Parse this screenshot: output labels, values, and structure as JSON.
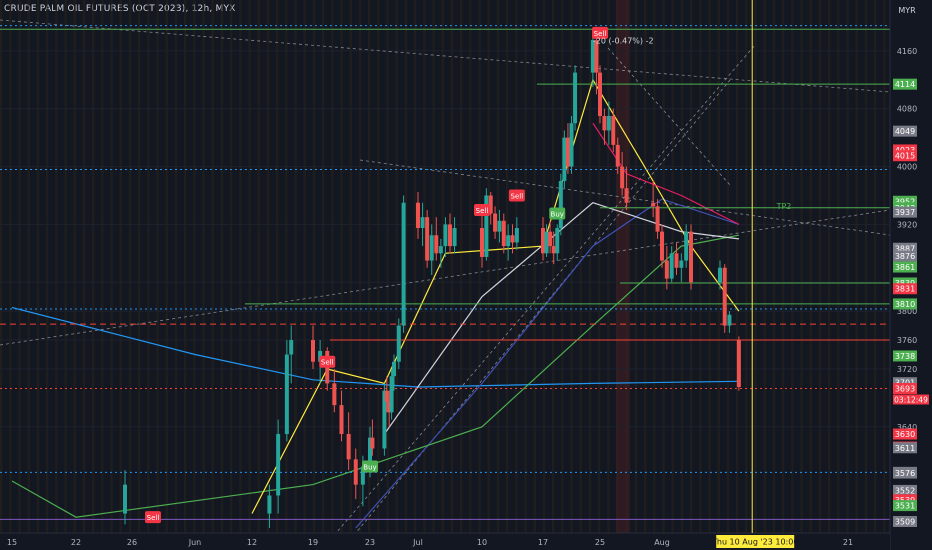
{
  "header": {
    "title": "CRUDE PALM OIL FUTURES (OCT 2023), 12h, MYX"
  },
  "axis": {
    "currency": "MYR"
  },
  "chart_data": {
    "type": "candlestick",
    "ylim": [
      3500,
      4200
    ],
    "price_ticks": [
      4160,
      4080,
      4000,
      3920,
      3840,
      3800,
      3760,
      3720,
      3640
    ],
    "x_ticks": [
      {
        "label": "15",
        "x": "2023-05-15"
      },
      {
        "label": "22",
        "x": "2023-05-22"
      },
      {
        "label": "26",
        "x": "2023-05-26"
      },
      {
        "label": "Jun",
        "x": "2023-06-01"
      },
      {
        "label": "12",
        "x": "2023-06-12"
      },
      {
        "label": "19",
        "x": "2023-06-19"
      },
      {
        "label": "23",
        "x": "2023-06-23"
      },
      {
        "label": "Jul",
        "x": "2023-07-03"
      },
      {
        "label": "10",
        "x": "2023-07-10"
      },
      {
        "label": "17",
        "x": "2023-07-17"
      },
      {
        "label": "25",
        "x": "2023-07-25"
      },
      {
        "label": "Aug",
        "x": "2023-08-01"
      },
      {
        "label": "7",
        "x": "2023-08-07"
      },
      {
        "label": "14",
        "x": "2023-08-14"
      },
      {
        "label": "21",
        "x": "2023-08-21"
      }
    ],
    "candles": [
      {
        "x": "2023-05-25T12",
        "o": 3520,
        "h": 3580,
        "l": 3505,
        "c": 3560
      },
      {
        "x": "2023-06-14",
        "o": 3520,
        "h": 3560,
        "l": 3500,
        "c": 3545
      },
      {
        "x": "2023-06-15",
        "o": 3545,
        "h": 3650,
        "l": 3520,
        "c": 3630
      },
      {
        "x": "2023-06-16",
        "o": 3630,
        "h": 3760,
        "l": 3620,
        "c": 3740
      },
      {
        "x": "2023-06-16T12",
        "o": 3740,
        "h": 3780,
        "l": 3700,
        "c": 3760
      },
      {
        "x": "2023-06-19",
        "o": 3760,
        "h": 3780,
        "l": 3720,
        "c": 3730
      },
      {
        "x": "2023-06-19T12",
        "o": 3730,
        "h": 3760,
        "l": 3700,
        "c": 3745
      },
      {
        "x": "2023-06-20",
        "o": 3745,
        "h": 3750,
        "l": 3690,
        "c": 3700
      },
      {
        "x": "2023-06-20T12",
        "o": 3700,
        "h": 3720,
        "l": 3660,
        "c": 3670
      },
      {
        "x": "2023-06-21",
        "o": 3670,
        "h": 3690,
        "l": 3620,
        "c": 3630
      },
      {
        "x": "2023-06-21T12",
        "o": 3630,
        "h": 3660,
        "l": 3580,
        "c": 3595
      },
      {
        "x": "2023-06-22",
        "o": 3595,
        "h": 3610,
        "l": 3540,
        "c": 3560
      },
      {
        "x": "2023-06-22T12",
        "o": 3560,
        "h": 3600,
        "l": 3530,
        "c": 3585
      },
      {
        "x": "2023-06-23",
        "o": 3585,
        "h": 3640,
        "l": 3570,
        "c": 3625
      },
      {
        "x": "2023-06-23T12",
        "o": 3625,
        "h": 3650,
        "l": 3600,
        "c": 3610
      },
      {
        "x": "2023-06-26",
        "o": 3610,
        "h": 3700,
        "l": 3600,
        "c": 3690
      },
      {
        "x": "2023-06-26T12",
        "o": 3690,
        "h": 3710,
        "l": 3660,
        "c": 3675
      },
      {
        "x": "2023-06-27",
        "o": 3675,
        "h": 3690,
        "l": 3640,
        "c": 3660
      },
      {
        "x": "2023-06-27T12",
        "o": 3660,
        "h": 3720,
        "l": 3650,
        "c": 3710
      },
      {
        "x": "2023-06-28",
        "o": 3710,
        "h": 3740,
        "l": 3690,
        "c": 3730
      },
      {
        "x": "2023-06-29",
        "o": 3730,
        "h": 3790,
        "l": 3720,
        "c": 3780
      },
      {
        "x": "2023-06-30",
        "o": 3780,
        "h": 3960,
        "l": 3770,
        "c": 3950
      },
      {
        "x": "2023-07-03",
        "o": 3950,
        "h": 3965,
        "l": 3900,
        "c": 3915
      },
      {
        "x": "2023-07-03T12",
        "o": 3915,
        "h": 3950,
        "l": 3890,
        "c": 3930
      },
      {
        "x": "2023-07-04",
        "o": 3930,
        "h": 3940,
        "l": 3860,
        "c": 3870
      },
      {
        "x": "2023-07-04T12",
        "o": 3870,
        "h": 3920,
        "l": 3850,
        "c": 3905
      },
      {
        "x": "2023-07-05",
        "o": 3905,
        "h": 3930,
        "l": 3870,
        "c": 3880
      },
      {
        "x": "2023-07-05T12",
        "o": 3880,
        "h": 3900,
        "l": 3860,
        "c": 3890
      },
      {
        "x": "2023-07-06",
        "o": 3890,
        "h": 3930,
        "l": 3875,
        "c": 3920
      },
      {
        "x": "2023-07-06T12",
        "o": 3920,
        "h": 3935,
        "l": 3880,
        "c": 3890
      },
      {
        "x": "2023-07-07",
        "o": 3890,
        "h": 3930,
        "l": 3880,
        "c": 3915
      },
      {
        "x": "2023-07-10",
        "o": 3915,
        "h": 3935,
        "l": 3860,
        "c": 3875
      },
      {
        "x": "2023-07-10T12",
        "o": 3875,
        "h": 3970,
        "l": 3870,
        "c": 3960
      },
      {
        "x": "2023-07-11",
        "o": 3960,
        "h": 3965,
        "l": 3920,
        "c": 3935
      },
      {
        "x": "2023-07-11T12",
        "o": 3935,
        "h": 3945,
        "l": 3900,
        "c": 3910
      },
      {
        "x": "2023-07-12",
        "o": 3910,
        "h": 3940,
        "l": 3895,
        "c": 3925
      },
      {
        "x": "2023-07-12T12",
        "o": 3925,
        "h": 3935,
        "l": 3880,
        "c": 3890
      },
      {
        "x": "2023-07-13",
        "o": 3890,
        "h": 3920,
        "l": 3870,
        "c": 3905
      },
      {
        "x": "2023-07-13T12",
        "o": 3905,
        "h": 3920,
        "l": 3880,
        "c": 3895
      },
      {
        "x": "2023-07-14",
        "o": 3895,
        "h": 3930,
        "l": 3885,
        "c": 3915
      },
      {
        "x": "2023-07-17",
        "o": 3915,
        "h": 3930,
        "l": 3870,
        "c": 3880
      },
      {
        "x": "2023-07-17T12",
        "o": 3880,
        "h": 3920,
        "l": 3875,
        "c": 3910
      },
      {
        "x": "2023-07-18",
        "o": 3910,
        "h": 3925,
        "l": 3880,
        "c": 3890
      },
      {
        "x": "2023-07-18T12",
        "o": 3890,
        "h": 3910,
        "l": 3865,
        "c": 3880
      },
      {
        "x": "2023-07-19",
        "o": 3880,
        "h": 3920,
        "l": 3870,
        "c": 3915
      },
      {
        "x": "2023-07-19T12",
        "o": 3915,
        "h": 3990,
        "l": 3905,
        "c": 3980
      },
      {
        "x": "2023-07-20",
        "o": 3980,
        "h": 4050,
        "l": 3970,
        "c": 4040
      },
      {
        "x": "2023-07-20T12",
        "o": 4040,
        "h": 4060,
        "l": 3990,
        "c": 4000
      },
      {
        "x": "2023-07-21",
        "o": 4000,
        "h": 4070,
        "l": 3990,
        "c": 4060
      },
      {
        "x": "2023-07-21T12",
        "o": 4060,
        "h": 4140,
        "l": 4050,
        "c": 4130
      },
      {
        "x": "2023-07-24",
        "o": 4130,
        "h": 4180,
        "l": 4110,
        "c": 4175
      },
      {
        "x": "2023-07-24T12",
        "o": 4175,
        "h": 4180,
        "l": 4100,
        "c": 4130
      },
      {
        "x": "2023-07-25",
        "o": 4130,
        "h": 4140,
        "l": 4060,
        "c": 4070
      },
      {
        "x": "2023-07-25T12",
        "o": 4070,
        "h": 4080,
        "l": 4030,
        "c": 4050
      },
      {
        "x": "2023-07-26",
        "o": 4050,
        "h": 4090,
        "l": 4030,
        "c": 4070
      },
      {
        "x": "2023-07-26T12",
        "o": 4070,
        "h": 4080,
        "l": 4020,
        "c": 4030
      },
      {
        "x": "2023-07-27",
        "o": 4030,
        "h": 4040,
        "l": 3990,
        "c": 4000
      },
      {
        "x": "2023-07-27T12",
        "o": 4000,
        "h": 4020,
        "l": 3960,
        "c": 3970
      },
      {
        "x": "2023-07-28",
        "o": 3970,
        "h": 4000,
        "l": 3940,
        "c": 3950
      },
      {
        "x": "2023-07-31",
        "o": 3950,
        "h": 3980,
        "l": 3930,
        "c": 3945
      },
      {
        "x": "2023-07-31T12",
        "o": 3945,
        "h": 3955,
        "l": 3900,
        "c": 3910
      },
      {
        "x": "2023-08-01",
        "o": 3910,
        "h": 3920,
        "l": 3860,
        "c": 3870
      },
      {
        "x": "2023-08-01T12",
        "o": 3870,
        "h": 3890,
        "l": 3830,
        "c": 3845
      },
      {
        "x": "2023-08-02",
        "o": 3845,
        "h": 3890,
        "l": 3840,
        "c": 3880
      },
      {
        "x": "2023-08-02T12",
        "o": 3880,
        "h": 3895,
        "l": 3850,
        "c": 3860
      },
      {
        "x": "2023-08-03",
        "o": 3860,
        "h": 3880,
        "l": 3840,
        "c": 3870
      },
      {
        "x": "2023-08-03T12",
        "o": 3870,
        "h": 3920,
        "l": 3860,
        "c": 3910
      },
      {
        "x": "2023-08-04",
        "o": 3910,
        "h": 3920,
        "l": 3830,
        "c": 3840
      },
      {
        "x": "2023-08-07",
        "o": 3840,
        "h": 3870,
        "l": 3830,
        "c": 3860
      },
      {
        "x": "2023-08-07T12",
        "o": 3860,
        "h": 3865,
        "l": 3770,
        "c": 3780
      },
      {
        "x": "2023-08-08",
        "o": 3780,
        "h": 3800,
        "l": 3770,
        "c": 3795
      },
      {
        "x": "2023-08-09",
        "o": 3760,
        "h": 3765,
        "l": 3690,
        "c": 3695
      }
    ],
    "indicators": [
      {
        "color": "#2196f3",
        "points": [
          [
            "2023-05-15",
            3805
          ],
          [
            "2023-06-01",
            3740
          ],
          [
            "2023-06-19",
            3705
          ],
          [
            "2023-07-03",
            3695
          ],
          [
            "2023-07-24",
            3700
          ],
          [
            "2023-08-09",
            3703
          ]
        ]
      },
      {
        "color": "#3f51b5",
        "points": [
          [
            "2023-06-22",
            3500
          ],
          [
            "2023-07-10",
            3700
          ],
          [
            "2023-07-24",
            3890
          ],
          [
            "2023-08-01",
            3955
          ],
          [
            "2023-08-09",
            3920
          ]
        ]
      },
      {
        "color": "#4caf50",
        "points": [
          [
            "2023-05-15",
            3565
          ],
          [
            "2023-05-22",
            3515
          ],
          [
            "2023-06-19",
            3560
          ],
          [
            "2023-07-10",
            3640
          ],
          [
            "2023-07-24",
            3780
          ],
          [
            "2023-08-03",
            3890
          ],
          [
            "2023-08-09",
            3905
          ]
        ]
      },
      {
        "color": "#ffeb3b",
        "points": [
          [
            "2023-06-12",
            3520
          ],
          [
            "2023-06-20",
            3720
          ],
          [
            "2023-06-26",
            3700
          ],
          [
            "2023-07-06",
            3880
          ],
          [
            "2023-07-17",
            3890
          ],
          [
            "2023-07-24",
            4120
          ],
          [
            "2023-07-31",
            3980
          ],
          [
            "2023-08-04",
            3890
          ],
          [
            "2023-08-09",
            3800
          ]
        ]
      },
      {
        "color": "#e91e63",
        "points": [
          [
            "2023-07-24",
            4060
          ],
          [
            "2023-07-28",
            3990
          ],
          [
            "2023-08-03",
            3960
          ],
          [
            "2023-08-09",
            3920
          ]
        ]
      },
      {
        "color": "#d1d4dc",
        "points": [
          [
            "2023-06-26",
            3630
          ],
          [
            "2023-07-10",
            3820
          ],
          [
            "2023-07-24",
            3950
          ],
          [
            "2023-08-03",
            3910
          ],
          [
            "2023-08-09",
            3900
          ]
        ]
      }
    ],
    "price_lines": [
      {
        "price": 3810,
        "color": "#4caf50",
        "style": "solid"
      },
      {
        "price": 3839,
        "color": "#4caf50",
        "style": "solid"
      },
      {
        "price": 3943,
        "color": "#4caf50",
        "style": "solid"
      },
      {
        "price": 4114,
        "color": "#4caf50",
        "style": "solid"
      },
      {
        "price": 4190,
        "color": "#4caf50",
        "style": "solid"
      },
      {
        "price": 3760,
        "color": "#f44336",
        "style": "solid"
      },
      {
        "price": 3782,
        "color": "#f44336",
        "style": "dashed"
      },
      {
        "price": 3693,
        "color": "#f44336",
        "style": "dotted"
      },
      {
        "price": 3996,
        "color": "#2196f3",
        "style": "dotted"
      },
      {
        "price": 3803,
        "color": "#2196f3",
        "style": "dotted"
      },
      {
        "price": 3577,
        "color": "#2196f3",
        "style": "dotted"
      },
      {
        "price": 4195,
        "color": "#2196f3",
        "style": "dotted"
      },
      {
        "price": 3512,
        "color": "#7e57c2",
        "style": "solid"
      }
    ],
    "price_labels": [
      {
        "price": 4114,
        "text": "4114",
        "color": "#4caf50"
      },
      {
        "price": 4049,
        "text": "4049",
        "color": "#787b86"
      },
      {
        "price": 4023,
        "text": "4023",
        "color": "#f23645"
      },
      {
        "price": 4015,
        "text": "4015",
        "color": "#f23645"
      },
      {
        "price": 3952,
        "text": "3952",
        "color": "#4caf50"
      },
      {
        "price": 3943,
        "text": "3943",
        "color": "#4caf50"
      },
      {
        "price": 3937,
        "text": "3937",
        "color": "#787b86"
      },
      {
        "price": 3887,
        "text": "3887",
        "color": "#787b86"
      },
      {
        "price": 3876,
        "text": "3876",
        "color": "#787b86"
      },
      {
        "price": 3861,
        "text": "3861",
        "color": "#4caf50"
      },
      {
        "price": 3839,
        "text": "3839",
        "color": "#4caf50"
      },
      {
        "price": 3831,
        "text": "3831",
        "color": "#f23645"
      },
      {
        "price": 3810,
        "text": "3810",
        "color": "#4caf50"
      },
      {
        "price": 3738,
        "text": "3738",
        "color": "#4caf50"
      },
      {
        "price": 3701,
        "text": "3701",
        "color": "#787b86"
      },
      {
        "price": 3693,
        "text": "3693",
        "color": "#f23645"
      },
      {
        "price": 3630,
        "text": "3630",
        "color": "#f23645"
      },
      {
        "price": 3612,
        "text": "3612",
        "color": "#f23645"
      },
      {
        "price": 3611,
        "text": "3611",
        "color": "#787b86"
      },
      {
        "price": 3577,
        "text": "3577",
        "color": "#787b86"
      },
      {
        "price": 3576,
        "text": "3576",
        "color": "#787b86"
      },
      {
        "price": 3552,
        "text": "3552",
        "color": "#787b86"
      },
      {
        "price": 3539,
        "text": "3539",
        "color": "#f23645"
      },
      {
        "price": 3531,
        "text": "3531",
        "color": "#4caf50"
      },
      {
        "price": 3509,
        "text": "3509",
        "color": "#787b86"
      }
    ],
    "countdown": {
      "price": 3693,
      "text": "03:12:49"
    },
    "signals": [
      {
        "type": "Sell",
        "x": "2023-05-28",
        "price": 3515
      },
      {
        "type": "Sell",
        "x": "2023-06-20",
        "price": 3730
      },
      {
        "type": "Buy",
        "x": "2023-06-23",
        "price": 3585
      },
      {
        "type": "Sell",
        "x": "2023-07-10",
        "price": 3940
      },
      {
        "type": "Sell",
        "x": "2023-07-14",
        "price": 3960
      },
      {
        "type": "Buy",
        "x": "2023-07-19",
        "price": 3935
      },
      {
        "type": "Sell",
        "x": "2023-07-25",
        "price": 4185
      }
    ],
    "annotations": [
      {
        "text": "TP2",
        "x": "2023-08-13",
        "price": 3941,
        "color": "#4caf50"
      },
      {
        "text": "-20 (-0.47%) -2",
        "x": "2023-07-24",
        "price": 4170,
        "color": "#d1d4dc"
      }
    ],
    "cursor": {
      "x": "2023-08-10T10",
      "label": "Thu 10 Aug '23  10:00"
    }
  }
}
